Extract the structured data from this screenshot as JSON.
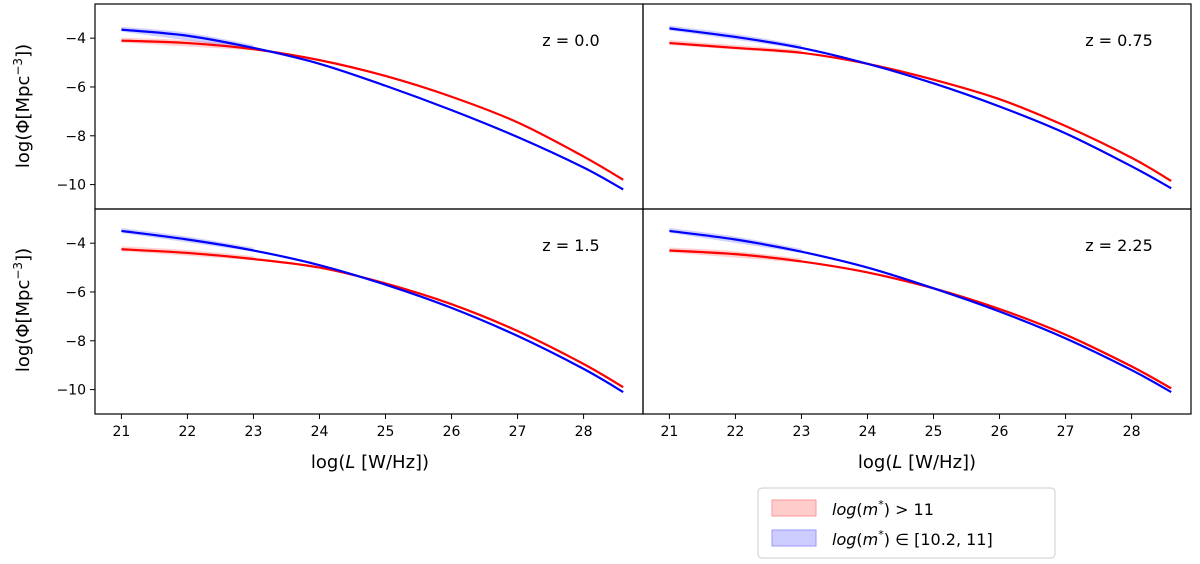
{
  "chart_data": {
    "type": "line",
    "layout": "2x2 shared axes",
    "xlabel": "log(L [W/Hz])",
    "ylabel": "log(Φ[Mpc⁻³])",
    "xlim": [
      20.6,
      28.9
    ],
    "ylim": [
      -11.0,
      -2.6
    ],
    "xticks": [
      21,
      22,
      23,
      24,
      25,
      26,
      27,
      28
    ],
    "yticks": [
      -4,
      -6,
      -8,
      -10
    ],
    "grid": false,
    "legend": {
      "placement": "lower-right, outside the panels",
      "entries": [
        {
          "label": "log(m*) > 11",
          "color": "#ff0000"
        },
        {
          "label": "log(m*) ∈ [10.2, 11]",
          "color": "#0000ff"
        }
      ]
    },
    "panels": [
      {
        "label": "z = 0.0",
        "x": [
          21,
          22,
          23,
          24,
          25,
          26,
          27,
          28,
          28.6
        ],
        "series": [
          {
            "color": "#ff0000",
            "y": [
              -4.1,
              -4.2,
              -4.45,
              -4.9,
              -5.55,
              -6.4,
              -7.45,
              -8.85,
              -9.8
            ]
          },
          {
            "color": "#0000ff",
            "y": [
              -3.65,
              -3.9,
              -4.4,
              -5.05,
              -5.95,
              -6.95,
              -8.05,
              -9.3,
              -10.2
            ]
          }
        ]
      },
      {
        "label": "z = 0.75",
        "x": [
          21,
          22,
          23,
          24,
          25,
          26,
          27,
          28,
          28.6
        ],
        "series": [
          {
            "color": "#ff0000",
            "y": [
              -4.2,
              -4.4,
              -4.6,
              -5.05,
              -5.7,
              -6.5,
              -7.6,
              -8.9,
              -9.85
            ]
          },
          {
            "color": "#0000ff",
            "y": [
              -3.6,
              -3.95,
              -4.4,
              -5.05,
              -5.85,
              -6.8,
              -7.9,
              -9.25,
              -10.15
            ]
          }
        ]
      },
      {
        "label": "z = 1.5",
        "x": [
          21,
          22,
          23,
          24,
          25,
          26,
          27,
          28,
          28.6
        ],
        "series": [
          {
            "color": "#ff0000",
            "y": [
              -4.25,
              -4.4,
              -4.65,
              -5.0,
              -5.65,
              -6.5,
              -7.6,
              -8.95,
              -9.9
            ]
          },
          {
            "color": "#0000ff",
            "y": [
              -3.5,
              -3.85,
              -4.3,
              -4.9,
              -5.7,
              -6.65,
              -7.8,
              -9.15,
              -10.1
            ]
          }
        ]
      },
      {
        "label": "z = 2.25",
        "x": [
          21,
          22,
          23,
          24,
          25,
          26,
          27,
          28,
          28.6
        ],
        "series": [
          {
            "color": "#ff0000",
            "y": [
              -4.3,
              -4.45,
              -4.75,
              -5.2,
              -5.85,
              -6.7,
              -7.75,
              -9.05,
              -9.95
            ]
          },
          {
            "color": "#0000ff",
            "y": [
              -3.5,
              -3.85,
              -4.35,
              -5.0,
              -5.85,
              -6.8,
              -7.9,
              -9.2,
              -10.1
            ]
          }
        ]
      }
    ]
  }
}
